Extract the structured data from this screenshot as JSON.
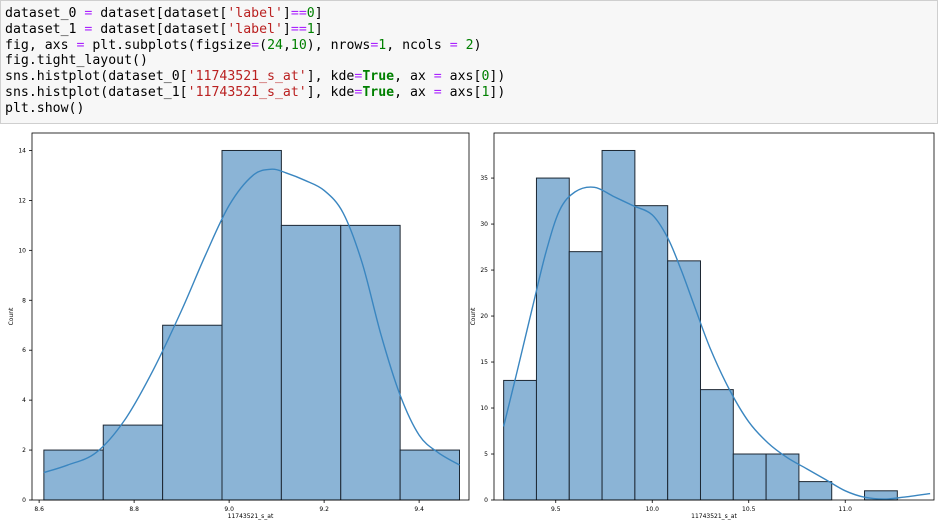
{
  "code_cell": {
    "lines": [
      [
        {
          "t": "dataset_0 "
        },
        {
          "t": "=",
          "c": "op"
        },
        {
          "t": " dataset[dataset["
        },
        {
          "t": "'label'",
          "c": "str"
        },
        {
          "t": "]"
        },
        {
          "t": "==",
          "c": "op"
        },
        {
          "t": "0",
          "c": "num"
        },
        {
          "t": "]"
        }
      ],
      [
        {
          "t": "dataset_1 "
        },
        {
          "t": "=",
          "c": "op"
        },
        {
          "t": " dataset[dataset["
        },
        {
          "t": "'label'",
          "c": "str"
        },
        {
          "t": "]"
        },
        {
          "t": "==",
          "c": "op"
        },
        {
          "t": "1",
          "c": "num"
        },
        {
          "t": "]"
        }
      ],
      [
        {
          "t": "fig, axs "
        },
        {
          "t": "=",
          "c": "op"
        },
        {
          "t": " plt.subplots(figsize"
        },
        {
          "t": "=",
          "c": "op"
        },
        {
          "t": "("
        },
        {
          "t": "24",
          "c": "num"
        },
        {
          "t": ","
        },
        {
          "t": "10",
          "c": "num"
        },
        {
          "t": "), nrows"
        },
        {
          "t": "=",
          "c": "op"
        },
        {
          "t": "1",
          "c": "num"
        },
        {
          "t": ", ncols "
        },
        {
          "t": "=",
          "c": "op"
        },
        {
          "t": " "
        },
        {
          "t": "2",
          "c": "num"
        },
        {
          "t": ")"
        }
      ],
      [
        {
          "t": "fig.tight_layout()"
        }
      ],
      [
        {
          "t": "sns.histplot(dataset_0["
        },
        {
          "t": "'11743521_s_at'",
          "c": "str"
        },
        {
          "t": "], kde"
        },
        {
          "t": "=",
          "c": "op"
        },
        {
          "t": "True",
          "c": "kw"
        },
        {
          "t": ", ax "
        },
        {
          "t": "=",
          "c": "op"
        },
        {
          "t": " axs["
        },
        {
          "t": "0",
          "c": "num"
        },
        {
          "t": "])"
        }
      ],
      [
        {
          "t": "sns.histplot(dataset_1["
        },
        {
          "t": "'11743521_s_at'",
          "c": "str"
        },
        {
          "t": "], kde"
        },
        {
          "t": "=",
          "c": "op"
        },
        {
          "t": "True",
          "c": "kw"
        },
        {
          "t": ", ax "
        },
        {
          "t": "=",
          "c": "op"
        },
        {
          "t": " axs["
        },
        {
          "t": "1",
          "c": "num"
        },
        {
          "t": "])"
        }
      ],
      [
        {
          "t": "plt.show()"
        }
      ]
    ]
  },
  "colors": {
    "bar_fill": "#8bb4d6",
    "bar_edge": "#1c2733",
    "kde": "#3a86c0",
    "axis": "#000000"
  },
  "chart_data": [
    {
      "type": "bar",
      "subtype": "histogram_with_kde",
      "xlabel": "11743521_s_at",
      "ylabel": "Count",
      "xlim": [
        8.585,
        9.505
      ],
      "ylim": [
        0,
        14.7
      ],
      "xticks": [
        8.6,
        8.8,
        9.0,
        9.2,
        9.4
      ],
      "xtick_labels": [
        "8.6",
        "8.8",
        "9.0",
        "9.2",
        "9.4"
      ],
      "yticks": [
        0,
        2,
        4,
        6,
        8,
        10,
        12,
        14
      ],
      "ytick_labels": [
        "0",
        "2",
        "4",
        "6",
        "8",
        "10",
        "12",
        "14"
      ],
      "bin_edges": [
        8.61,
        8.735,
        8.86,
        8.985,
        9.11,
        9.235,
        9.36,
        9.485
      ],
      "values": [
        2,
        3,
        7,
        14,
        11,
        11,
        2
      ],
      "kde": {
        "x": [
          8.61,
          8.66,
          8.72,
          8.78,
          8.84,
          8.9,
          8.95,
          9.0,
          9.05,
          9.09,
          9.12,
          9.16,
          9.2,
          9.24,
          9.28,
          9.32,
          9.36,
          9.4,
          9.44,
          9.485
        ],
        "y": [
          1.1,
          1.4,
          1.9,
          3.2,
          5.2,
          7.6,
          9.8,
          11.8,
          13.0,
          13.25,
          13.1,
          12.8,
          12.4,
          11.5,
          9.5,
          6.6,
          4.2,
          2.6,
          1.9,
          1.4
        ]
      }
    },
    {
      "type": "bar",
      "subtype": "histogram_with_kde",
      "xlabel": "11743521_s_at",
      "ylabel": "Count",
      "xlim": [
        9.18,
        11.46
      ],
      "ylim": [
        0,
        39.9
      ],
      "xticks": [
        9.5,
        10.0,
        10.5,
        11.0
      ],
      "xtick_labels": [
        "9.5",
        "10.0",
        "10.5",
        "11.0"
      ],
      "yticks": [
        0,
        5,
        10,
        15,
        20,
        25,
        30,
        35
      ],
      "ytick_labels": [
        "0",
        "5",
        "10",
        "15",
        "20",
        "25",
        "30",
        "35"
      ],
      "bin_edges": [
        9.23,
        9.4,
        9.57,
        9.74,
        9.91,
        10.08,
        10.25,
        10.42,
        10.59,
        10.76,
        10.93,
        11.1,
        11.27,
        11.44
      ],
      "values": [
        13,
        35,
        27,
        38,
        32,
        26,
        12,
        5,
        5,
        2,
        0,
        1,
        0
      ],
      "kde_x_range": [
        9.23,
        11.44
      ],
      "kde": {
        "x": [
          9.23,
          9.3,
          9.38,
          9.45,
          9.52,
          9.6,
          9.7,
          9.8,
          9.9,
          10.0,
          10.08,
          10.15,
          10.22,
          10.3,
          10.4,
          10.5,
          10.6,
          10.7,
          10.8,
          10.9,
          11.0,
          11.1,
          11.2,
          11.3,
          11.44
        ],
        "y": [
          8.0,
          14.0,
          21.0,
          27.0,
          31.5,
          33.5,
          34.0,
          33.0,
          32.0,
          31.0,
          28.5,
          25.0,
          21.0,
          16.5,
          12.0,
          8.5,
          6.2,
          4.6,
          3.4,
          2.2,
          1.0,
          0.3,
          0.1,
          0.3,
          0.7
        ]
      }
    }
  ]
}
